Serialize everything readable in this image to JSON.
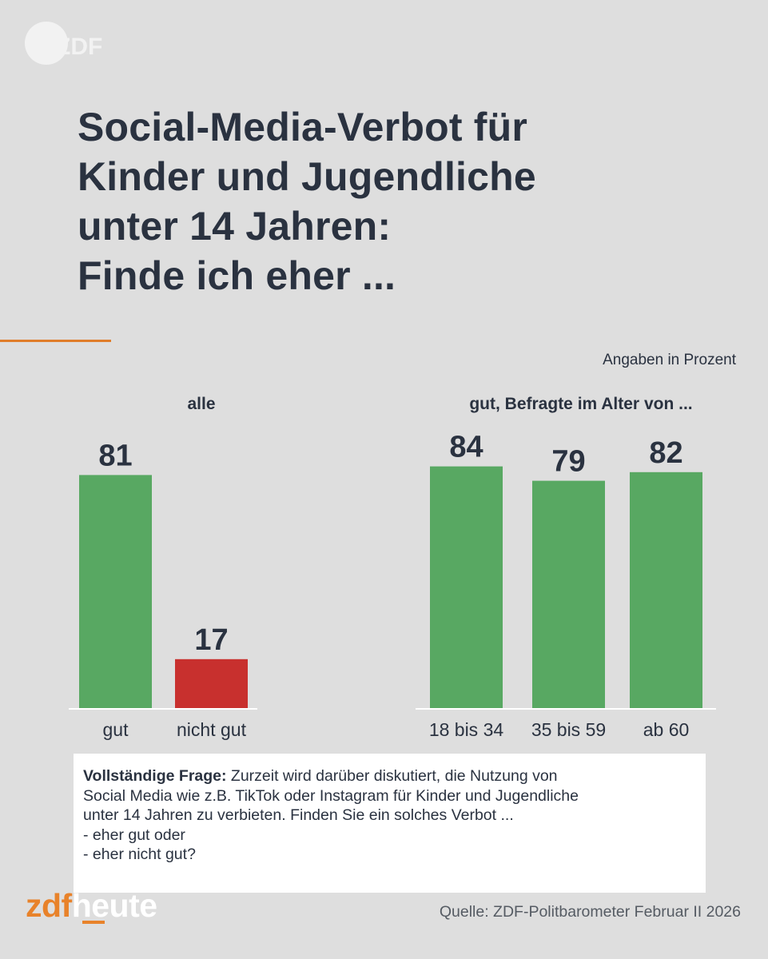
{
  "header": {
    "logo": "ZDF",
    "title_lines": [
      "Social-Media-Verbot für",
      "Kinder und Jugendliche",
      "unter 14 Jahren:",
      "Finde ich eher ..."
    ],
    "unit_note": "Angaben in Prozent"
  },
  "chart_data": [
    {
      "type": "bar",
      "title": "alle",
      "categories": [
        "gut",
        "nicht gut"
      ],
      "values": [
        81,
        17
      ],
      "colors": [
        "#58a862",
        "#c8302e"
      ],
      "ylim": [
        0,
        100
      ],
      "grid": false,
      "legend": "none"
    },
    {
      "type": "bar",
      "title": "gut, Befragte im Alter von ...",
      "categories": [
        "18 bis 34",
        "35 bis 59",
        "ab 60"
      ],
      "values": [
        84,
        79,
        82
      ],
      "colors": [
        "#58a862",
        "#58a862",
        "#58a862"
      ],
      "ylim": [
        0,
        100
      ],
      "grid": false,
      "legend": "none"
    }
  ],
  "note": {
    "label": "Vollständige Frage:",
    "lines": [
      "Zurzeit wird darüber diskutiert, die Nutzung von",
      "Social Media wie z.B. TikTok oder Instagram für Kinder und Jugendliche",
      "unter 14 Jahren zu verbieten. Finden Sie ein solches Verbot ...",
      "- eher gut oder",
      "- eher nicht gut?"
    ]
  },
  "footer": {
    "brand_zdf": "zdf",
    "brand_heute": "heute",
    "source": "Quelle: ZDF-Politbarometer Februar II 2026"
  },
  "colors": {
    "background": "#dedede",
    "good": "#58a862",
    "bad": "#c8302e",
    "accent": "#e07d2a",
    "text": "#2a3240"
  }
}
